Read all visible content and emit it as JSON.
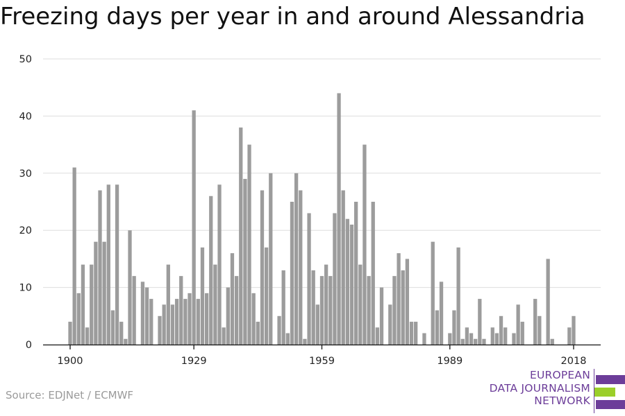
{
  "title": "Freezing days per year in and around Alessandria",
  "source": "Source: EDJNet / ECMWF",
  "logo": {
    "line1": "EUROPEAN",
    "line2": "DATA JOURNALISM",
    "line3": "NETWORK"
  },
  "colors": {
    "bar": "#9c9c9c",
    "grid": "#dddddd",
    "axis": "#111111",
    "logo_purple": "#6c3d99",
    "logo_green": "#9bcf2a"
  },
  "chart_data": {
    "type": "bar",
    "title": "Freezing days per year in and around Alessandria",
    "xlabel": "",
    "ylabel": "",
    "ylim": [
      0,
      50
    ],
    "yticks": [
      0,
      10,
      20,
      30,
      40,
      50
    ],
    "xticks": [
      1900,
      1929,
      1959,
      1989,
      2018
    ],
    "grid": true,
    "x_range": [
      1900,
      2018
    ],
    "values": [
      4,
      31,
      9,
      14,
      3,
      14,
      18,
      27,
      18,
      28,
      6,
      28,
      4,
      1,
      20,
      12,
      0,
      11,
      10,
      8,
      0,
      5,
      7,
      14,
      7,
      8,
      12,
      8,
      9,
      41,
      8,
      17,
      9,
      26,
      14,
      28,
      3,
      10,
      16,
      12,
      38,
      29,
      35,
      9,
      4,
      27,
      17,
      30,
      0,
      5,
      13,
      2,
      25,
      30,
      27,
      1,
      23,
      13,
      7,
      12,
      14,
      12,
      23,
      44,
      27,
      22,
      21,
      25,
      14,
      35,
      12,
      25,
      3,
      10,
      0,
      7,
      12,
      16,
      13,
      15,
      4,
      4,
      0,
      2,
      0,
      18,
      6,
      11,
      0,
      2,
      6,
      17,
      1,
      3,
      2,
      1,
      8,
      1,
      0,
      3,
      2,
      5,
      3,
      0,
      2,
      7,
      4,
      0,
      0,
      8,
      5,
      0,
      15,
      1,
      0,
      0,
      0,
      3,
      5
    ]
  }
}
